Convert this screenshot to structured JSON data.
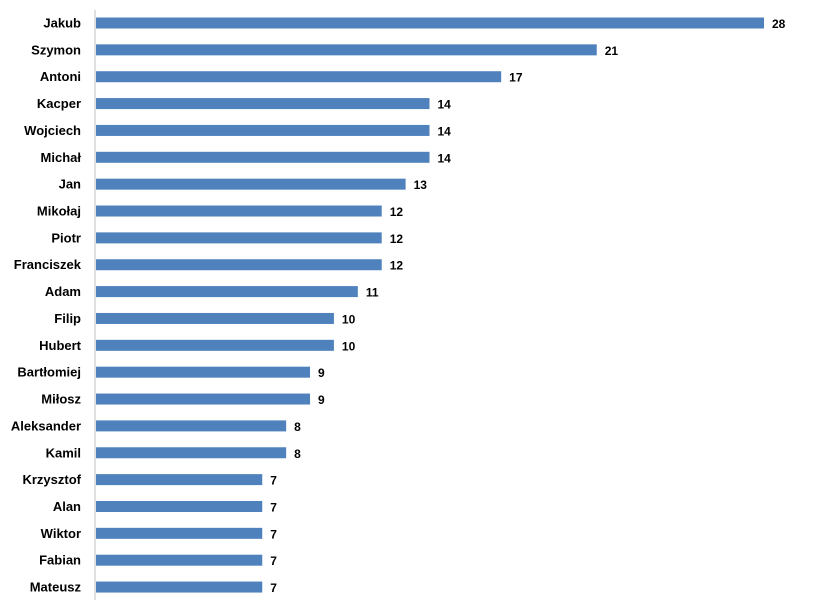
{
  "chart_data": {
    "type": "bar",
    "orientation": "horizontal",
    "title": "",
    "xlabel": "",
    "ylabel": "",
    "categories": [
      "Jakub",
      "Szymon",
      "Antoni",
      "Kacper",
      "Wojciech",
      "Michał",
      "Jan",
      "Mikołaj",
      "Piotr",
      "Franciszek",
      "Adam",
      "Filip",
      "Hubert",
      "Bartłomiej",
      "Miłosz",
      "Aleksander",
      "Kamil",
      "Krzysztof",
      "Alan",
      "Wiktor",
      "Fabian",
      "Mateusz"
    ],
    "values": [
      28,
      21,
      17,
      14,
      14,
      14,
      13,
      12,
      12,
      12,
      11,
      10,
      10,
      9,
      9,
      8,
      8,
      7,
      7,
      7,
      7,
      7
    ],
    "xlim": [
      0,
      28
    ],
    "grid": false,
    "legend": "none",
    "bar_color": "#4F81BD",
    "axis_color": "#BFBFBF",
    "data_labels": true
  }
}
